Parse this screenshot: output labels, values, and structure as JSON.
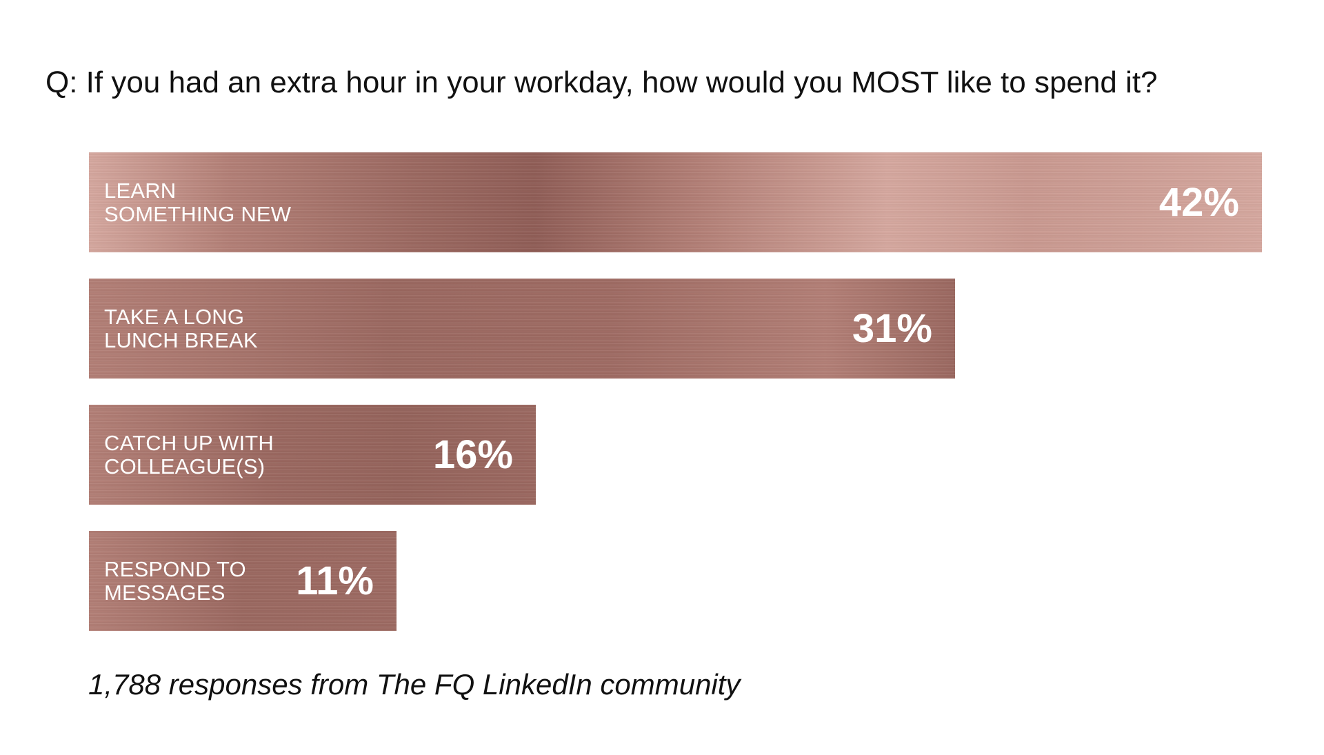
{
  "question": "Q: If you had an extra hour in your workday, how would you MOST like to spend it?",
  "footnote": "1,788 responses from The FQ LinkedIn community",
  "colors": {
    "bar_dark": "#9a675f",
    "bar_mid": "#b27e75",
    "bar_light": "#d5a79e",
    "text_on_bar": "#ffffff"
  },
  "chart_data": {
    "type": "bar",
    "orientation": "horizontal",
    "title": "Q: If you had an extra hour in your workday, how would you MOST like to spend it?",
    "categories": [
      "LEARN\nSOMETHING NEW",
      "TAKE A LONG\nLUNCH BREAK",
      "CATCH UP WITH\nCOLLEAGUE(S)",
      "RESPOND TO\nMESSAGES"
    ],
    "values": [
      42,
      31,
      16,
      11
    ],
    "value_labels": [
      "42%",
      "31%",
      "16%",
      "11%"
    ],
    "xlim": [
      0,
      42
    ],
    "grid": false,
    "legend": "none"
  }
}
